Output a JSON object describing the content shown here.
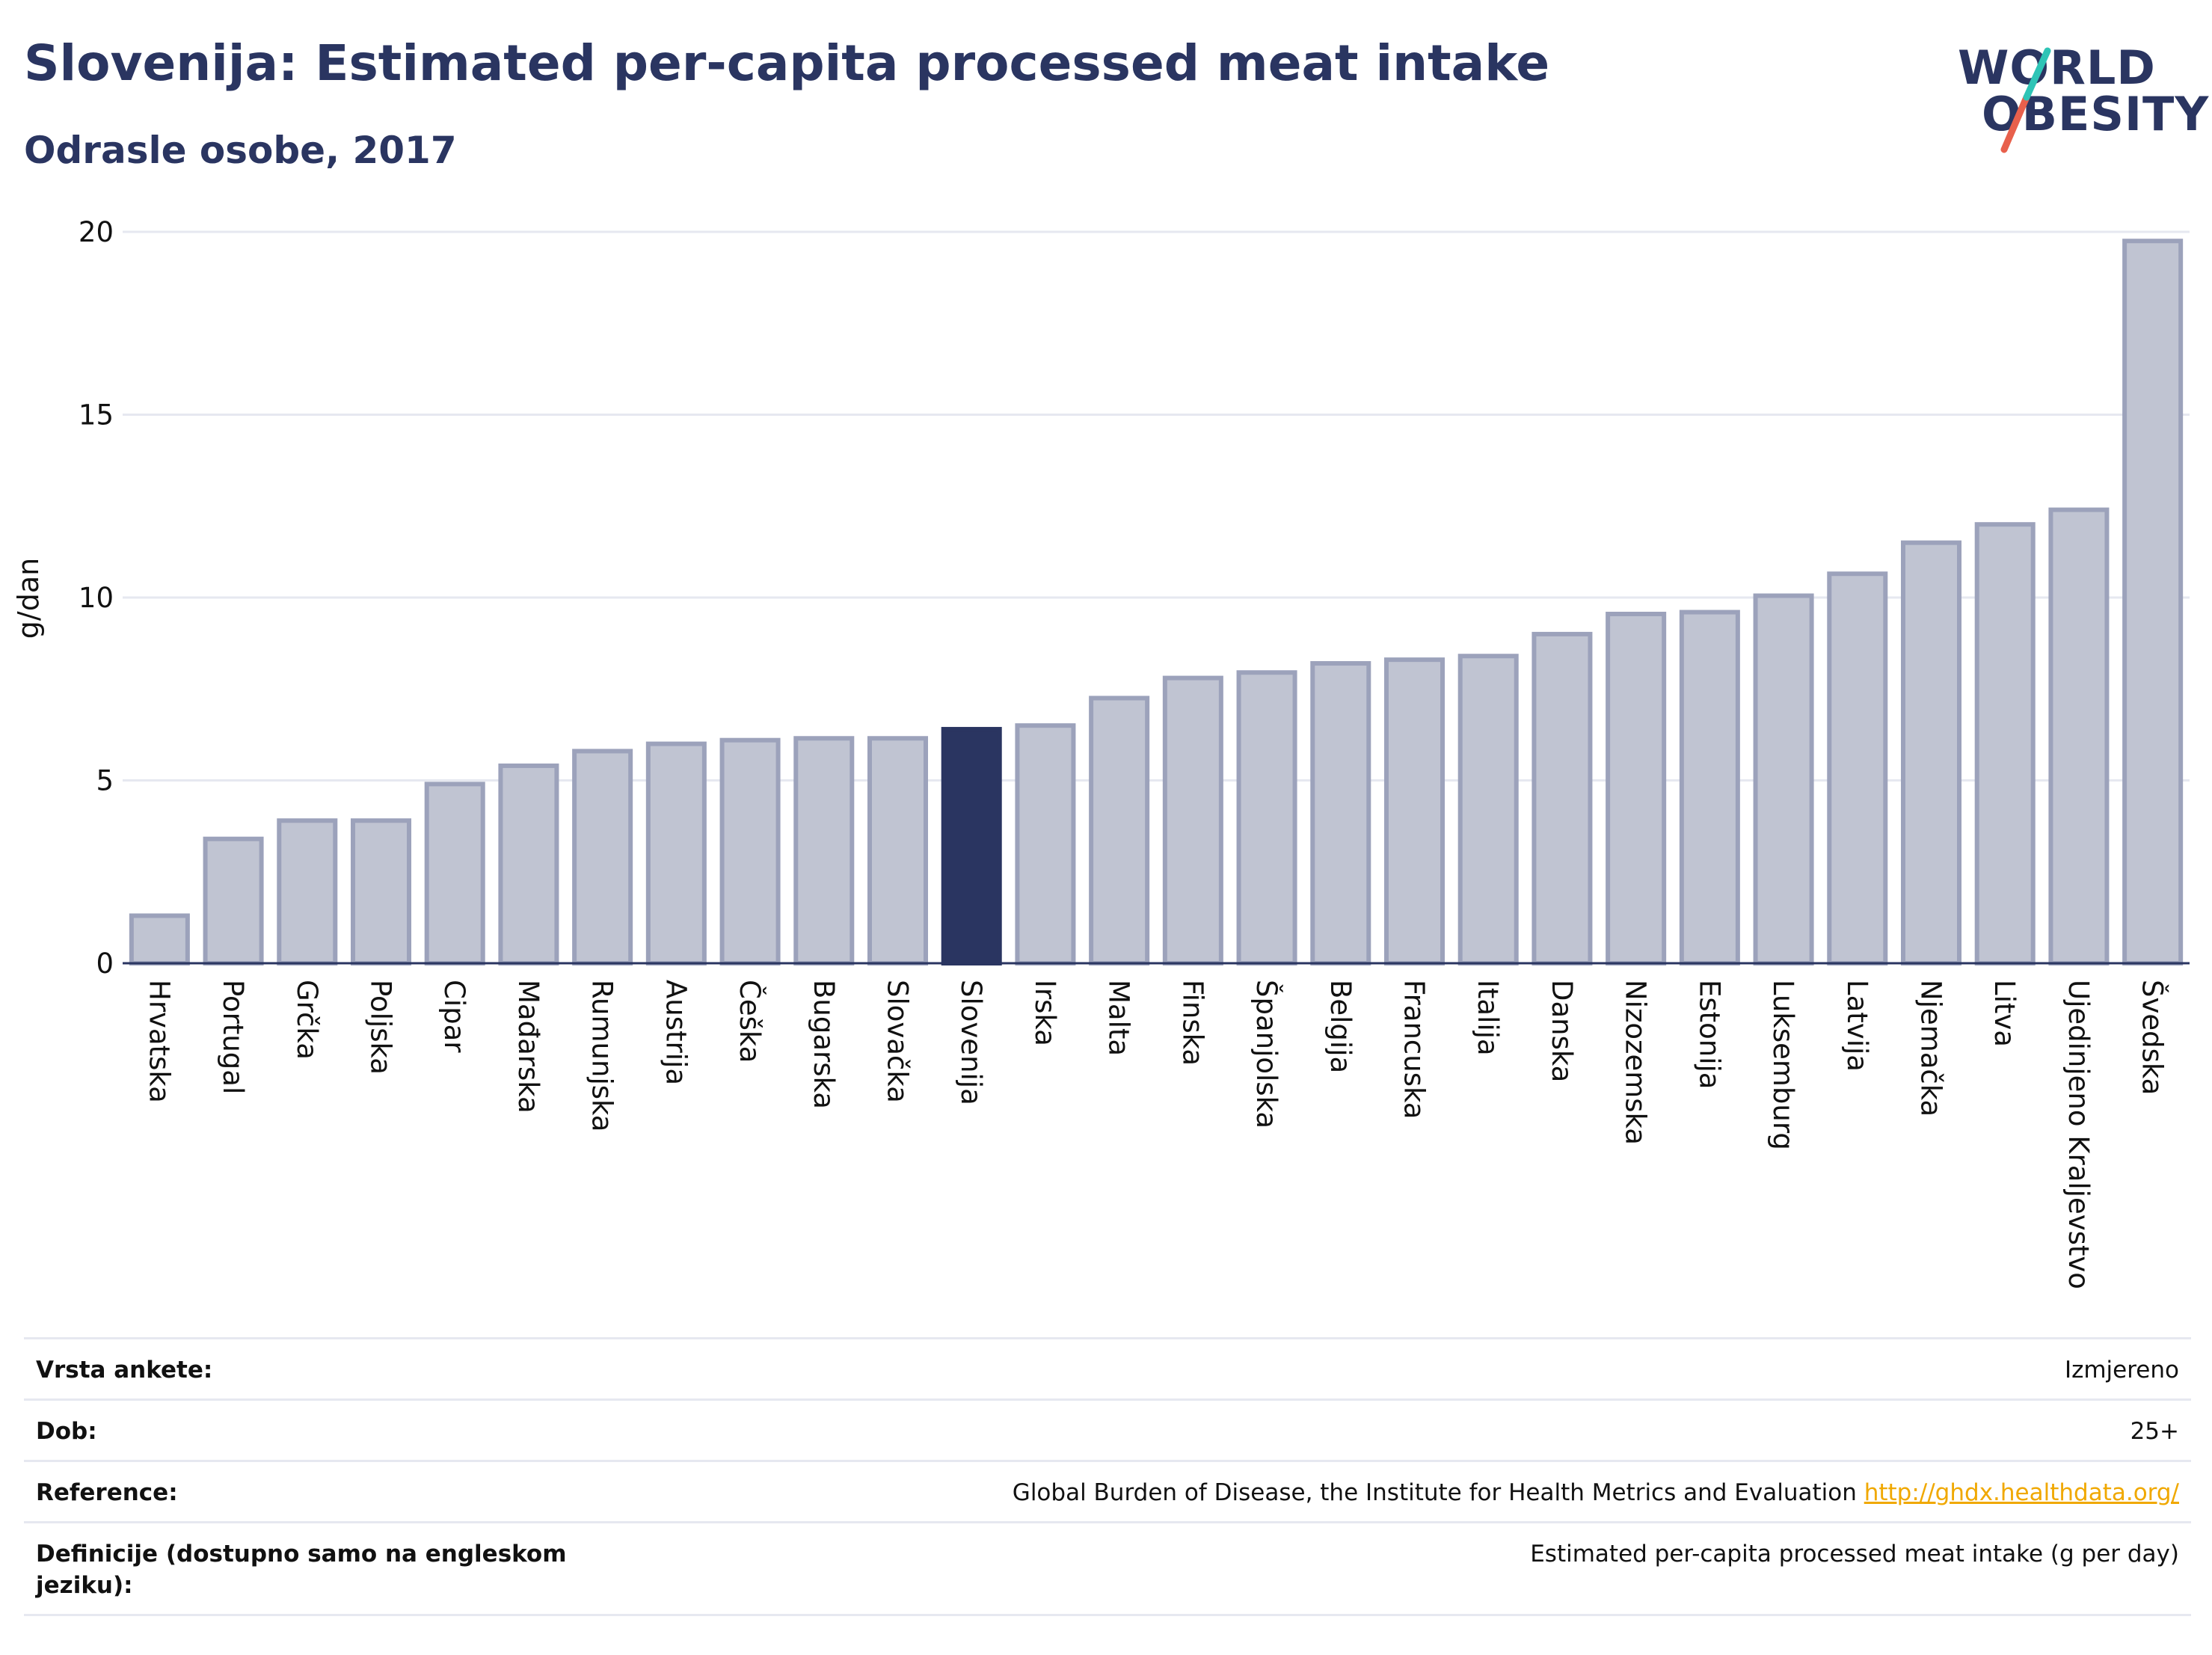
{
  "header": {
    "title": "Slovenija: Estimated per-capita processed meat intake",
    "subtitle": "Odrasle osobe, 2017"
  },
  "logo": {
    "line1": "WORLD",
    "line2": "OBESITY",
    "colors": {
      "text": "#2a3561",
      "slash_top": "#2ec4b6",
      "slash_bottom": "#e8604c"
    }
  },
  "colors": {
    "bar_default": "#c0c4d2",
    "bar_default_border": "#9ca2bb",
    "bar_highlight": "#2a3561",
    "grid": "#e6e8f0",
    "axis": "#2a3561"
  },
  "chart_data": {
    "type": "bar",
    "ylabel": "g/dan",
    "ylim": [
      0,
      20
    ],
    "yticks": [
      0,
      5,
      10,
      15,
      20
    ],
    "highlight": "Slovenija",
    "categories": [
      "Hrvatska",
      "Portugal",
      "Grčka",
      "Poljska",
      "Cipar",
      "Mađarska",
      "Rumunjska",
      "Austrija",
      "Češka",
      "Bugarska",
      "Slovačka",
      "Slovenija",
      "Irska",
      "Malta",
      "Finska",
      "Španjolska",
      "Belgija",
      "Francuska",
      "Italija",
      "Danska",
      "Nizozemska",
      "Estonija",
      "Luksemburg",
      "Latvija",
      "Njemačka",
      "Litva",
      "Ujedinjeno Kraljevstvo",
      "Švedska"
    ],
    "values": [
      1.3,
      3.4,
      3.9,
      3.9,
      4.9,
      5.4,
      5.8,
      6.0,
      6.1,
      6.15,
      6.15,
      6.4,
      6.5,
      7.25,
      7.8,
      7.95,
      8.2,
      8.3,
      8.4,
      9.0,
      9.55,
      9.6,
      10.05,
      10.65,
      11.5,
      12.0,
      12.4,
      19.75
    ],
    "grid": true
  },
  "info": {
    "rows": [
      {
        "label": "Vrsta ankete:",
        "value": "Izmjereno"
      },
      {
        "label": "Dob:",
        "value": "25+"
      },
      {
        "label": "Reference:",
        "value": "Global Burden of Disease, the Institute for Health Metrics and Evaluation",
        "link": "http://ghdx.healthdata.org/"
      },
      {
        "label": "Definicije (dostupno samo na engleskom jeziku):",
        "value": "Estimated per-capita processed meat intake (g per day)"
      }
    ]
  }
}
